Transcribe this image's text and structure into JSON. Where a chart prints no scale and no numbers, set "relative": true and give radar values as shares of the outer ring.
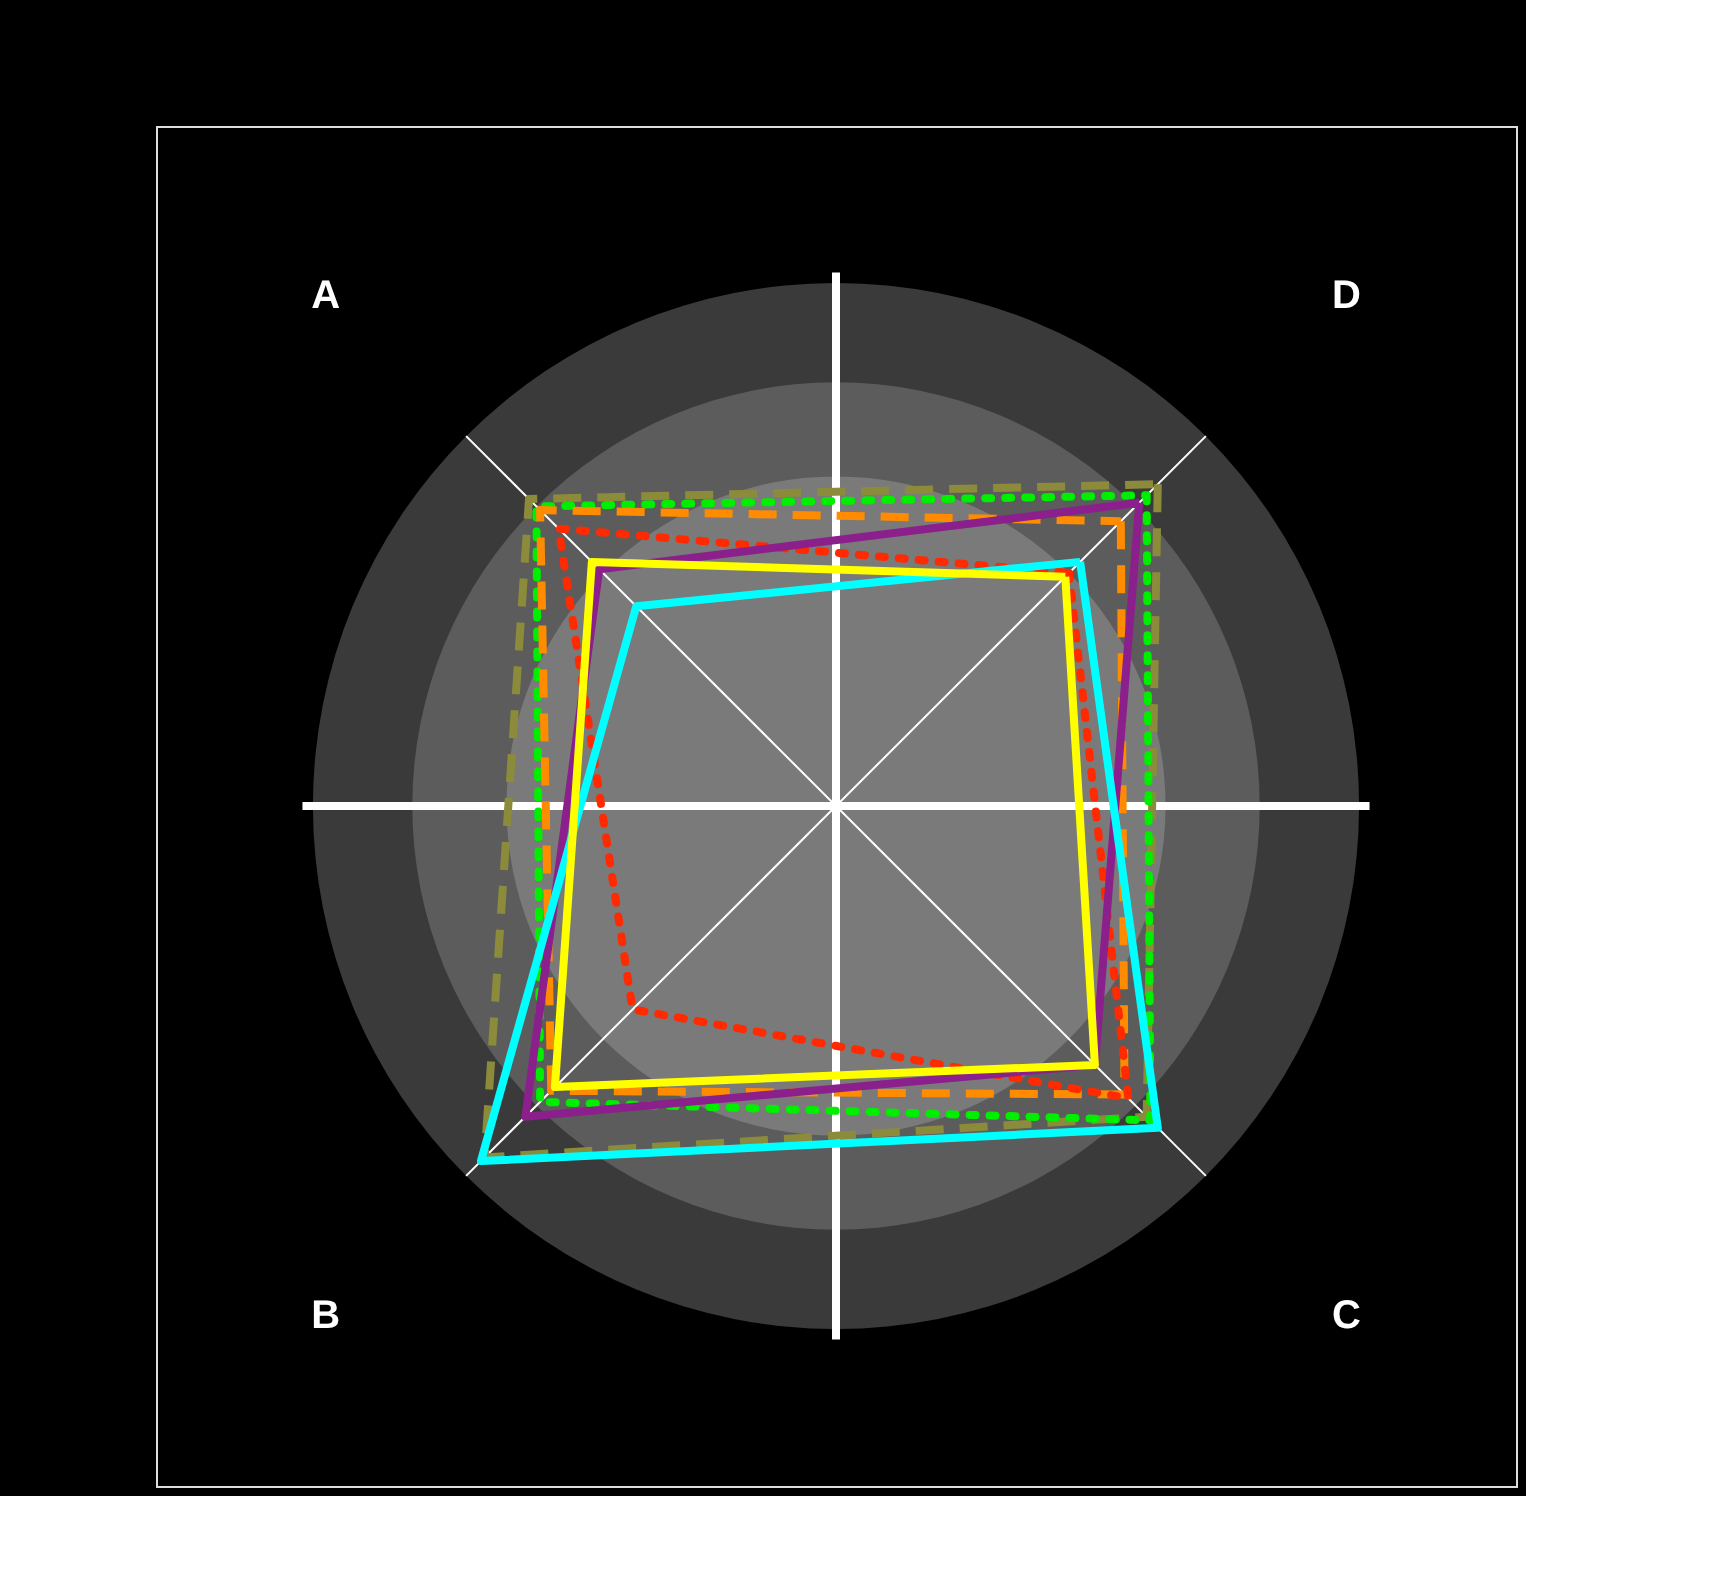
{
  "chart_data": {
    "type": "radar",
    "relative": true,
    "categories": [
      "D",
      "C",
      "B",
      "A"
    ],
    "series": [
      {
        "color": "#8b8b3b",
        "line_style": "dashed",
        "values": [
          0.87,
          0.84,
          0.95,
          0.83
        ]
      },
      {
        "color": "#00ee00",
        "line_style": "dotted",
        "values": [
          0.84,
          0.85,
          0.8,
          0.81
        ]
      },
      {
        "color": "#ff8c00",
        "line_style": "dashed",
        "values": [
          0.77,
          0.78,
          0.77,
          0.8
        ]
      },
      {
        "color": "#ff2a00",
        "line_style": "dotted",
        "values": [
          0.63,
          0.79,
          0.55,
          0.75
        ]
      },
      {
        "color": "#8b1f8b",
        "line_style": "solid",
        "values": [
          0.82,
          0.7,
          0.84,
          0.64
        ]
      },
      {
        "color": "#00ffff",
        "line_style": "solid",
        "values": [
          0.66,
          0.87,
          0.96,
          0.54
        ]
      },
      {
        "color": "#ffff00",
        "line_style": "solid",
        "values": [
          0.62,
          0.7,
          0.76,
          0.66
        ]
      }
    ]
  }
}
